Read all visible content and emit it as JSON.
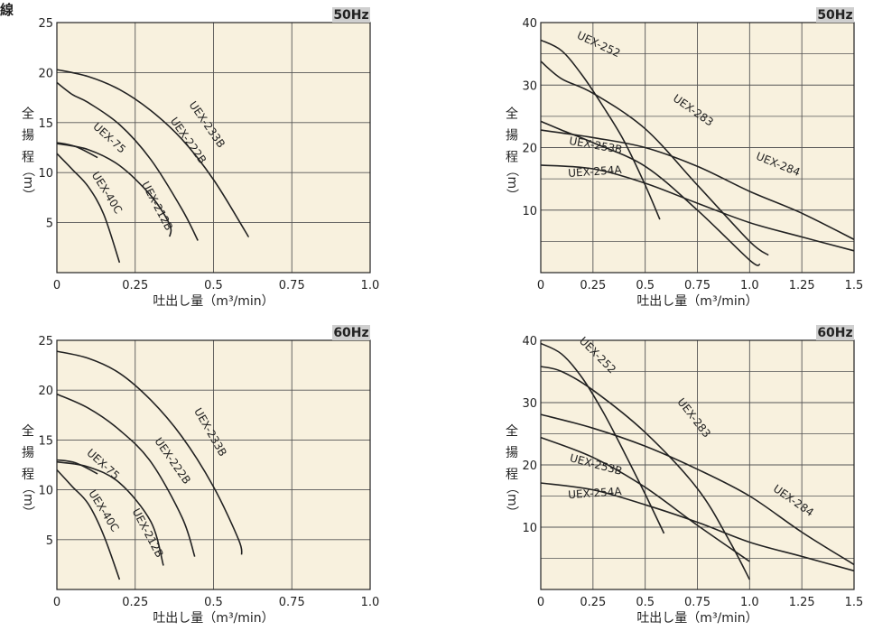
{
  "fragment": "線",
  "chart_data": [
    {
      "type": "line",
      "badge": "50Hz",
      "xlabel": "吐出し量（m³/min）",
      "ylabel_chars": [
        "全",
        "揚",
        "程",
        "（m）"
      ],
      "xlim": [
        0,
        1.0
      ],
      "ylim": [
        0,
        25
      ],
      "xticks": [
        0,
        0.25,
        0.5,
        0.75,
        1.0
      ],
      "xtick_labels": [
        "0",
        "0.25",
        "0.5",
        "0.75",
        "1.0"
      ],
      "yticks": [
        5,
        10,
        15,
        20,
        25
      ],
      "ytick_labels": [
        "5",
        "10",
        "15",
        "20",
        "25"
      ],
      "grid": true,
      "grid_minor_y": [],
      "series": [
        {
          "name": "UEX-233B",
          "points": [
            [
              0,
              20.3
            ],
            [
              0.1,
              19.6
            ],
            [
              0.2,
              18.3
            ],
            [
              0.3,
              16.2
            ],
            [
              0.4,
              13.3
            ],
            [
              0.5,
              9.3
            ],
            [
              0.6,
              4.2
            ],
            [
              0.61,
              3.6
            ]
          ]
        },
        {
          "name": "UEX-222B",
          "points": [
            [
              0,
              19.0
            ],
            [
              0.05,
              17.8
            ],
            [
              0.1,
              17.0
            ],
            [
              0.2,
              14.8
            ],
            [
              0.3,
              11.3
            ],
            [
              0.4,
              6.3
            ],
            [
              0.45,
              3.2
            ]
          ]
        },
        {
          "name": "UEX-212B",
          "points": [
            [
              0,
              12.9
            ],
            [
              0.1,
              12.3
            ],
            [
              0.2,
              10.7
            ],
            [
              0.3,
              7.7
            ],
            [
              0.36,
              4.8
            ],
            [
              0.36,
              3.6
            ]
          ]
        },
        {
          "name": "UEX-75",
          "points": [
            [
              0,
              13.0
            ],
            [
              0.06,
              12.6
            ],
            [
              0.13,
              11.5
            ]
          ]
        },
        {
          "name": "UEX-40C",
          "points": [
            [
              0,
              11.9
            ],
            [
              0.05,
              10.3
            ],
            [
              0.1,
              8.6
            ],
            [
              0.15,
              5.8
            ],
            [
              0.2,
              1.0
            ]
          ]
        }
      ],
      "labels": [
        {
          "text": "UEX-233B",
          "x": 0.47,
          "y": 14.6,
          "angle": 55
        },
        {
          "text": "UEX-222B",
          "x": 0.41,
          "y": 13.0,
          "angle": 55
        },
        {
          "text": "UEX-212B",
          "x": 0.31,
          "y": 6.5,
          "angle": 62
        },
        {
          "text": "UEX-75",
          "x": 0.16,
          "y": 13.2,
          "angle": 42
        },
        {
          "text": "UEX-40C",
          "x": 0.15,
          "y": 7.8,
          "angle": 58
        }
      ]
    },
    {
      "type": "line",
      "badge": "50Hz",
      "xlabel": "吐出し量（m³/min）",
      "ylabel_chars": [
        "全",
        "揚",
        "程",
        "（m）"
      ],
      "xlim": [
        0,
        1.5
      ],
      "ylim": [
        0,
        40
      ],
      "xticks": [
        0,
        0.25,
        0.5,
        0.75,
        1.0,
        1.25,
        1.5
      ],
      "xtick_labels": [
        "0",
        "0.25",
        "0.5",
        "0.75",
        "1.0",
        "1.25",
        "1.5"
      ],
      "yticks": [
        10,
        20,
        30,
        40
      ],
      "ytick_labels": [
        "10",
        "20",
        "30",
        "40"
      ],
      "grid": true,
      "grid_minor_y": [
        5,
        15,
        25,
        35
      ],
      "series": [
        {
          "name": "UEX-252",
          "points": [
            [
              0,
              37.2
            ],
            [
              0.1,
              35.5
            ],
            [
              0.2,
              31.5
            ],
            [
              0.3,
              26.5
            ],
            [
              0.4,
              21.0
            ],
            [
              0.5,
              14.0
            ],
            [
              0.57,
              8.5
            ]
          ]
        },
        {
          "name": "UEX-283",
          "points": [
            [
              0,
              33.8
            ],
            [
              0.1,
              31.0
            ],
            [
              0.25,
              28.7
            ],
            [
              0.5,
              23.0
            ],
            [
              0.75,
              14.0
            ],
            [
              1.0,
              5.0
            ],
            [
              1.09,
              2.8
            ]
          ]
        },
        {
          "name": "UEX-253B",
          "points": [
            [
              0,
              24.2
            ],
            [
              0.1,
              22.8
            ],
            [
              0.25,
              20.8
            ],
            [
              0.5,
              17.0
            ],
            [
              0.75,
              10.0
            ],
            [
              1.0,
              2.0
            ],
            [
              1.05,
              1.3
            ]
          ]
        },
        {
          "name": "UEX-284",
          "points": [
            [
              0,
              22.8
            ],
            [
              0.25,
              21.6
            ],
            [
              0.5,
              20.0
            ],
            [
              0.75,
              17.0
            ],
            [
              1.0,
              13.0
            ],
            [
              1.25,
              9.5
            ],
            [
              1.5,
              5.3
            ]
          ]
        },
        {
          "name": "UEX-254A",
          "points": [
            [
              0,
              17.2
            ],
            [
              0.25,
              16.6
            ],
            [
              0.5,
              14.3
            ],
            [
              0.75,
              11.1
            ],
            [
              1.0,
              8.0
            ],
            [
              1.25,
              5.7
            ],
            [
              1.5,
              3.5
            ]
          ]
        }
      ],
      "labels": [
        {
          "text": "UEX-252",
          "x": 0.27,
          "y": 36.0,
          "angle": 25
        },
        {
          "text": "UEX-283",
          "x": 0.72,
          "y": 25.5,
          "angle": 35
        },
        {
          "text": "UEX-253B",
          "x": 0.26,
          "y": 19.8,
          "angle": 10
        },
        {
          "text": "UEX-284",
          "x": 1.13,
          "y": 16.8,
          "angle": 22
        },
        {
          "text": "UEX-254A",
          "x": 0.26,
          "y": 15.6,
          "angle": -4
        }
      ]
    },
    {
      "type": "line",
      "badge": "60Hz",
      "xlabel": "吐出し量（m³/min）",
      "ylabel_chars": [
        "全",
        "揚",
        "程",
        "（m）"
      ],
      "xlim": [
        0,
        1.0
      ],
      "ylim": [
        0,
        25
      ],
      "xticks": [
        0,
        0.25,
        0.5,
        0.75,
        1.0
      ],
      "xtick_labels": [
        "0",
        "0.25",
        "0.5",
        "0.75",
        "1.0"
      ],
      "yticks": [
        5,
        10,
        15,
        20,
        25
      ],
      "ytick_labels": [
        "5",
        "10",
        "15",
        "20",
        "25"
      ],
      "grid": true,
      "grid_minor_y": [],
      "series": [
        {
          "name": "UEX-233B",
          "points": [
            [
              0,
              23.9
            ],
            [
              0.1,
              23.2
            ],
            [
              0.2,
              21.7
            ],
            [
              0.3,
              19.0
            ],
            [
              0.4,
              15.3
            ],
            [
              0.5,
              10.3
            ],
            [
              0.58,
              5.0
            ],
            [
              0.59,
              3.5
            ]
          ]
        },
        {
          "name": "UEX-222B",
          "points": [
            [
              0,
              19.6
            ],
            [
              0.1,
              18.2
            ],
            [
              0.2,
              16.0
            ],
            [
              0.3,
              12.8
            ],
            [
              0.4,
              7.2
            ],
            [
              0.44,
              3.3
            ]
          ]
        },
        {
          "name": "UEX-212B",
          "points": [
            [
              0,
              12.8
            ],
            [
              0.1,
              12.3
            ],
            [
              0.2,
              10.7
            ],
            [
              0.3,
              6.8
            ],
            [
              0.34,
              2.4
            ]
          ]
        },
        {
          "name": "UEX-75",
          "points": [
            [
              0,
              13.0
            ],
            [
              0.06,
              12.7
            ],
            [
              0.13,
              11.6
            ]
          ]
        },
        {
          "name": "UEX-40C",
          "points": [
            [
              0,
              12.0
            ],
            [
              0.05,
              10.3
            ],
            [
              0.1,
              8.6
            ],
            [
              0.15,
              5.4
            ],
            [
              0.2,
              1.0
            ]
          ]
        }
      ],
      "labels": [
        {
          "text": "UEX-233B",
          "x": 0.48,
          "y": 15.6,
          "angle": 60
        },
        {
          "text": "UEX-222B",
          "x": 0.36,
          "y": 12.7,
          "angle": 55
        },
        {
          "text": "UEX-212B",
          "x": 0.28,
          "y": 5.5,
          "angle": 62
        },
        {
          "text": "UEX-75",
          "x": 0.14,
          "y": 12.3,
          "angle": 42
        },
        {
          "text": "UEX-40C",
          "x": 0.14,
          "y": 7.7,
          "angle": 58
        }
      ]
    },
    {
      "type": "line",
      "badge": "60Hz",
      "xlabel": "吐出し量（m³/min）",
      "ylabel_chars": [
        "全",
        "揚",
        "程",
        "（m）"
      ],
      "xlim": [
        0,
        1.5
      ],
      "ylim": [
        0,
        40
      ],
      "xticks": [
        0,
        0.25,
        0.5,
        0.75,
        1.0,
        1.25,
        1.5
      ],
      "xtick_labels": [
        "0",
        "0.25",
        "0.5",
        "0.75",
        "1.0",
        "1.25",
        "1.5"
      ],
      "yticks": [
        10,
        20,
        30,
        40
      ],
      "ytick_labels": [
        "10",
        "20",
        "30",
        "40"
      ],
      "grid": true,
      "grid_minor_y": [
        5,
        15,
        25,
        35
      ],
      "series": [
        {
          "name": "UEX-252",
          "points": [
            [
              0,
              39.5
            ],
            [
              0.1,
              37.8
            ],
            [
              0.2,
              33.9
            ],
            [
              0.3,
              28.4
            ],
            [
              0.4,
              22.0
            ],
            [
              0.5,
              15.3
            ],
            [
              0.59,
              9.0
            ]
          ]
        },
        {
          "name": "UEX-283",
          "points": [
            [
              0,
              35.8
            ],
            [
              0.1,
              35.0
            ],
            [
              0.25,
              32.0
            ],
            [
              0.5,
              25.2
            ],
            [
              0.75,
              16.2
            ],
            [
              0.9,
              8.0
            ],
            [
              1.0,
              1.6
            ]
          ]
        },
        {
          "name": "UEX-284",
          "points": [
            [
              0,
              28.1
            ],
            [
              0.25,
              25.9
            ],
            [
              0.5,
              23.0
            ],
            [
              0.75,
              19.3
            ],
            [
              1.0,
              15.0
            ],
            [
              1.25,
              9.2
            ],
            [
              1.5,
              4.0
            ]
          ]
        },
        {
          "name": "UEX-253B",
          "points": [
            [
              0,
              24.4
            ],
            [
              0.25,
              21.2
            ],
            [
              0.5,
              16.4
            ],
            [
              0.75,
              10.3
            ],
            [
              1.0,
              4.5
            ]
          ]
        },
        {
          "name": "UEX-254A",
          "points": [
            [
              0,
              17.1
            ],
            [
              0.25,
              16.0
            ],
            [
              0.5,
              13.6
            ],
            [
              0.75,
              10.8
            ],
            [
              1.0,
              7.6
            ],
            [
              1.25,
              5.3
            ],
            [
              1.5,
              3.0
            ]
          ]
        }
      ],
      "labels": [
        {
          "text": "UEX-252",
          "x": 0.26,
          "y": 37.2,
          "angle": 45
        },
        {
          "text": "UEX-283",
          "x": 0.72,
          "y": 27.2,
          "angle": 52
        },
        {
          "text": "UEX-253B",
          "x": 0.26,
          "y": 19.5,
          "angle": 15
        },
        {
          "text": "UEX-284",
          "x": 1.2,
          "y": 13.8,
          "angle": 35
        },
        {
          "text": "UEX-254A",
          "x": 0.26,
          "y": 14.9,
          "angle": -4
        }
      ]
    }
  ]
}
